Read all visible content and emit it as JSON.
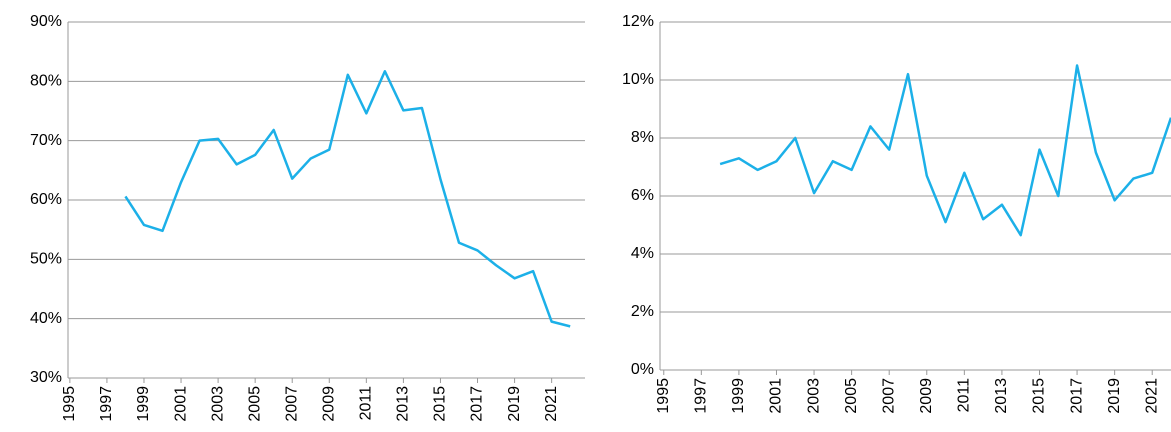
{
  "chart_data": [
    {
      "type": "line",
      "x": [
        1998,
        1999,
        2000,
        2001,
        2002,
        2003,
        2004,
        2005,
        2006,
        2007,
        2008,
        2009,
        2010,
        2011,
        2012,
        2013,
        2014,
        2015,
        2016,
        2017,
        2018,
        2019,
        2020,
        2021,
        2022
      ],
      "series": [
        {
          "color": "#1cb0e8",
          "values": [
            60.6,
            55.8,
            54.8,
            63,
            70,
            70.3,
            66,
            67.6,
            71.8,
            63.6,
            67,
            68.5,
            81.1,
            74.6,
            81.7,
            75.1,
            75.5,
            63.5,
            52.8,
            51.5,
            49,
            46.8,
            48,
            39.5,
            38.7
          ]
        }
      ],
      "xlim": [
        1994.9,
        2022.8
      ],
      "xticks": [
        1995,
        1997,
        1999,
        2001,
        2003,
        2005,
        2007,
        2009,
        2011,
        2013,
        2015,
        2017,
        2019,
        2021
      ],
      "ylim": [
        30,
        90
      ],
      "yticks": [
        {
          "value": 30,
          "label": "30%"
        },
        {
          "value": 40,
          "label": "40%"
        },
        {
          "value": 50,
          "label": "50%"
        },
        {
          "value": 60,
          "label": "60%"
        },
        {
          "value": 70,
          "label": "70%"
        },
        {
          "value": 80,
          "label": "80%"
        },
        {
          "value": 90,
          "label": "90%"
        }
      ],
      "grid": true
    },
    {
      "type": "line",
      "x": [
        1998,
        1999,
        2000,
        2001,
        2002,
        2003,
        2004,
        2005,
        2006,
        2007,
        2008,
        2009,
        2010,
        2011,
        2012,
        2013,
        2014,
        2015,
        2016,
        2017,
        2018,
        2019,
        2020,
        2021,
        2022
      ],
      "series": [
        {
          "color": "#1cb0e8",
          "values": [
            7.1,
            7.3,
            6.9,
            7.2,
            8.0,
            6.1,
            7.2,
            6.9,
            8.4,
            7.6,
            10.2,
            6.7,
            5.1,
            6.8,
            5.2,
            5.7,
            4.65,
            7.6,
            6.0,
            10.5,
            7.5,
            5.85,
            6.6,
            6.8,
            8.7
          ]
        }
      ],
      "xlim": [
        1994.8,
        2022
      ],
      "xticks": [
        1995,
        1997,
        1999,
        2001,
        2003,
        2005,
        2007,
        2009,
        2011,
        2013,
        2015,
        2017,
        2019,
        2021
      ],
      "ylim": [
        0,
        12
      ],
      "yticks": [
        {
          "value": 0,
          "label": "0%"
        },
        {
          "value": 2,
          "label": "2%"
        },
        {
          "value": 4,
          "label": "4%"
        },
        {
          "value": 6,
          "label": "6%"
        },
        {
          "value": 8,
          "label": "8%"
        },
        {
          "value": 10,
          "label": "10%"
        },
        {
          "value": 12,
          "label": "12%"
        }
      ],
      "grid": true
    }
  ]
}
